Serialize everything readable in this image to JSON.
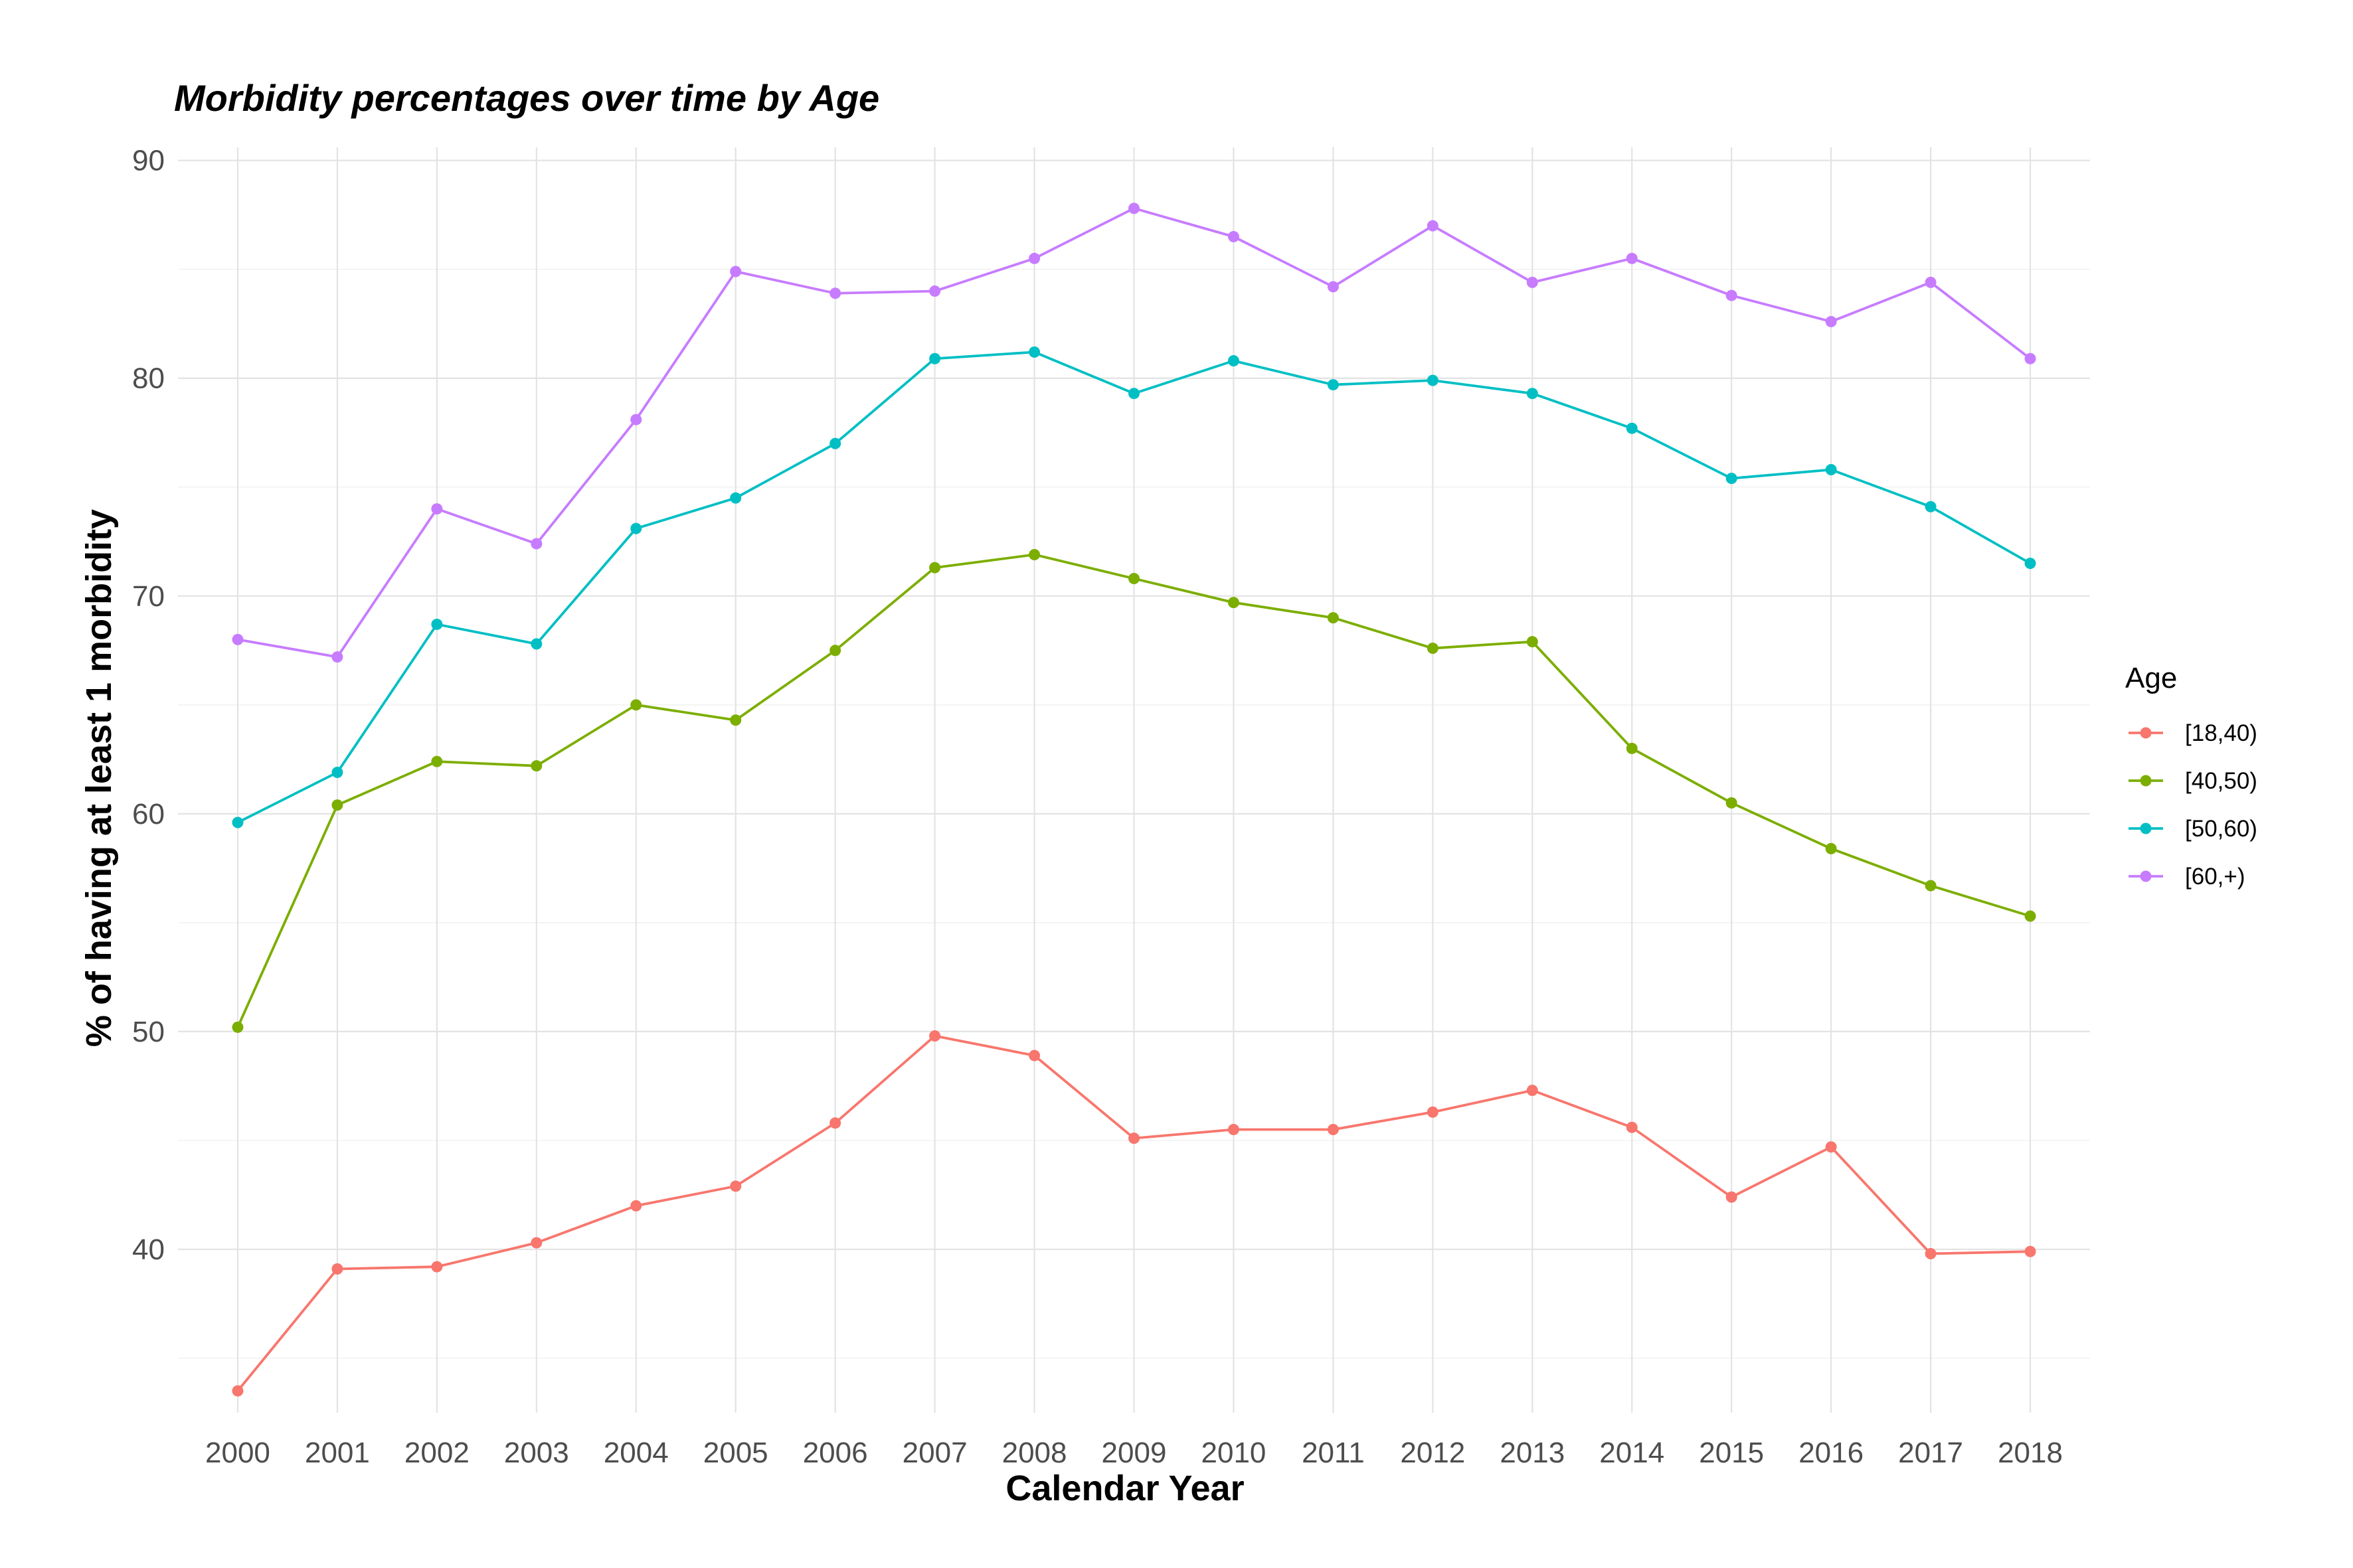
{
  "chart_data": {
    "type": "line",
    "title": "Morbidity percentages over time by Age",
    "xlabel": "Calendar Year",
    "ylabel": "% of having at least 1 morbidity",
    "x": [
      2000,
      2001,
      2002,
      2003,
      2004,
      2005,
      2006,
      2007,
      2008,
      2009,
      2010,
      2011,
      2012,
      2013,
      2014,
      2015,
      2016,
      2017,
      2018
    ],
    "x_tick_labels": [
      "2000",
      "2001",
      "2002",
      "2003",
      "2004",
      "2005",
      "2006",
      "2007",
      "2008",
      "2009",
      "2010",
      "2011",
      "2012",
      "2013",
      "2014",
      "2015",
      "2016",
      "2017",
      "2018"
    ],
    "ylim": [
      32.5,
      90.6
    ],
    "y_ticks": [
      40,
      50,
      60,
      70,
      80,
      90
    ],
    "y_tick_labels": [
      "40",
      "50",
      "60",
      "70",
      "80",
      "90"
    ],
    "grid": true,
    "legend": {
      "title": "Age",
      "position": "right"
    },
    "series": [
      {
        "name": "[18,40)",
        "color": "#F8766D",
        "values": [
          33.5,
          39.1,
          39.2,
          40.3,
          42.0,
          42.9,
          45.8,
          49.8,
          48.9,
          45.1,
          45.5,
          45.5,
          46.3,
          47.3,
          45.6,
          42.4,
          44.7,
          39.8,
          39.9
        ]
      },
      {
        "name": "[40,50)",
        "color": "#7CAE00",
        "values": [
          50.2,
          60.4,
          62.4,
          62.2,
          65.0,
          64.3,
          67.5,
          71.3,
          71.9,
          70.8,
          69.7,
          69.0,
          67.6,
          67.9,
          63.0,
          60.5,
          58.4,
          56.7,
          55.3
        ]
      },
      {
        "name": "[50,60)",
        "color": "#00BFC4",
        "values": [
          59.6,
          61.9,
          68.7,
          67.8,
          73.1,
          74.5,
          77.0,
          80.9,
          81.2,
          79.3,
          80.8,
          79.7,
          79.9,
          79.3,
          77.7,
          75.4,
          75.8,
          74.1,
          71.5
        ]
      },
      {
        "name": "[60,+)",
        "color": "#C77CFF",
        "values": [
          68.0,
          67.2,
          74.0,
          72.4,
          78.1,
          84.9,
          83.9,
          84.0,
          85.5,
          87.8,
          86.5,
          84.2,
          87.0,
          84.4,
          85.5,
          83.8,
          82.6,
          84.4,
          80.9
        ]
      }
    ]
  }
}
